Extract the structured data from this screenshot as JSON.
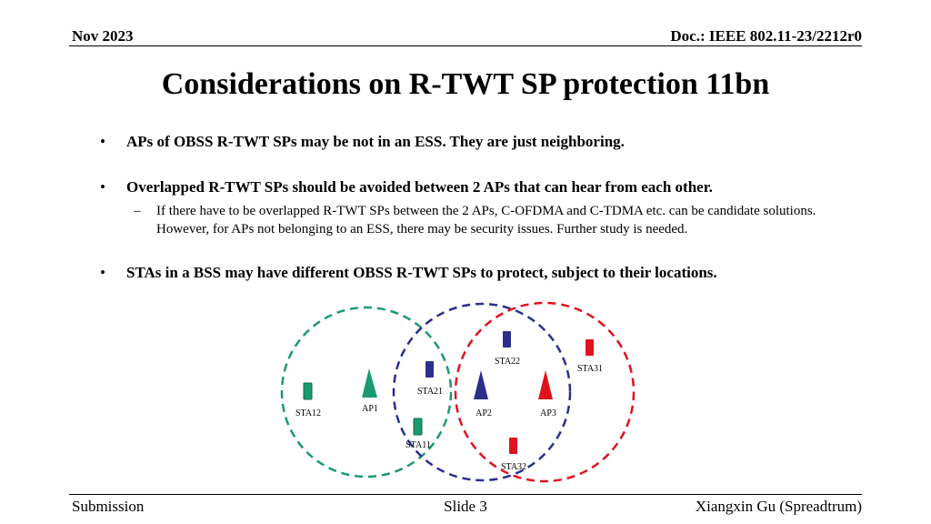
{
  "header": {
    "date": "Nov 2023",
    "doc": "Doc.: IEEE 802.11-23/2212r0"
  },
  "title": "Considerations on R-TWT SP protection 11bn",
  "bullets": [
    {
      "marker": "•",
      "text": "APs of OBSS R-TWT SPs may be not in an ESS. They are just neighboring."
    },
    {
      "marker": "•",
      "text": "Overlapped R-TWT SPs should be avoided between 2 APs that can hear from each other."
    },
    {
      "marker": "•",
      "text": "STAs in a BSS may have different OBSS R-TWT SPs to protect, subject to their locations."
    }
  ],
  "subbullet": {
    "marker": "–",
    "text": "If there have to be overlapped R-TWT SPs between the 2 APs, C-OFDMA and C-TDMA etc. can be candidate solutions. However, for APs not belonging to an ESS, there may be security issues. Further study is needed."
  },
  "diagram": {
    "colors": {
      "bss1": "#1a9a70",
      "bss2": "#2b2f8c",
      "bss3": "#e0121e"
    },
    "labels": {
      "ap1": "AP1",
      "ap2": "AP2",
      "ap3": "AP3",
      "sta11": "STA11",
      "sta12": "STA12",
      "sta21": "STA21",
      "sta22": "STA22",
      "sta31": "STA31",
      "sta32": "STA32"
    }
  },
  "footer": {
    "left": "Submission",
    "center": "Slide 3",
    "right": "Xiangxin Gu (Spreadtrum)"
  }
}
